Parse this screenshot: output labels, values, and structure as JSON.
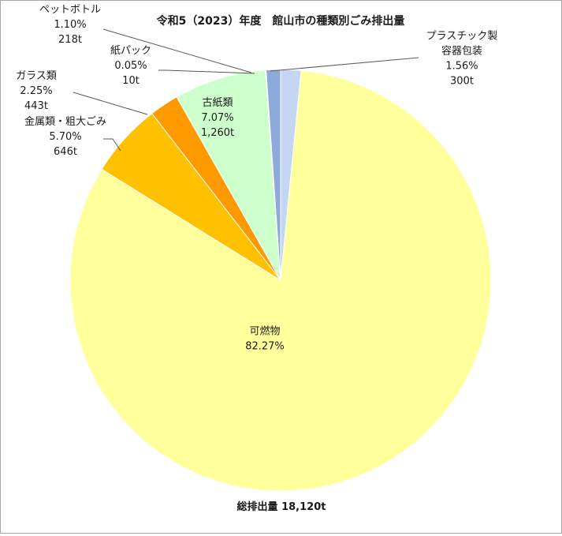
{
  "chart_data": {
    "type": "pie",
    "title": "令和5（2023）年度　館山市の種類別ごみ排出量",
    "total_label": "総排出量 18,120t",
    "slices": [
      {
        "name": "プラスチック製容器包装",
        "label_lines": [
          "プラスチック製",
          "容器包装"
        ],
        "percent": 1.56,
        "percent_label": "1.56%",
        "amount_label": "300t",
        "color": "#c5d6f2"
      },
      {
        "name": "可燃物",
        "label_lines": [
          "可燃物"
        ],
        "percent": 82.27,
        "percent_label": "82.27%",
        "amount_label": "",
        "color": "#ffff9c"
      },
      {
        "name": "金属類・粗大ごみ",
        "label_lines": [
          "金属類・粗大ごみ"
        ],
        "percent": 5.7,
        "percent_label": "5.70%",
        "amount_label": "646t",
        "color": "#ffc000"
      },
      {
        "name": "ガラス類",
        "label_lines": [
          "ガラス類"
        ],
        "percent": 2.25,
        "percent_label": "2.25%",
        "amount_label": "443t",
        "color": "#ff9900"
      },
      {
        "name": "古紙類",
        "label_lines": [
          "古紙類"
        ],
        "percent": 7.07,
        "percent_label": "7.07%",
        "amount_label": "1,260t",
        "color": "#ccffcc"
      },
      {
        "name": "紙パック",
        "label_lines": [
          "紙パック"
        ],
        "percent": 0.05,
        "percent_label": "0.05%",
        "amount_label": "10t",
        "color": "#5b9bd5"
      },
      {
        "name": "ペットボトル",
        "label_lines": [
          "ペットボトル"
        ],
        "percent": 1.1,
        "percent_label": "1.10%",
        "amount_label": "218t",
        "color": "#8eaadb"
      }
    ]
  }
}
